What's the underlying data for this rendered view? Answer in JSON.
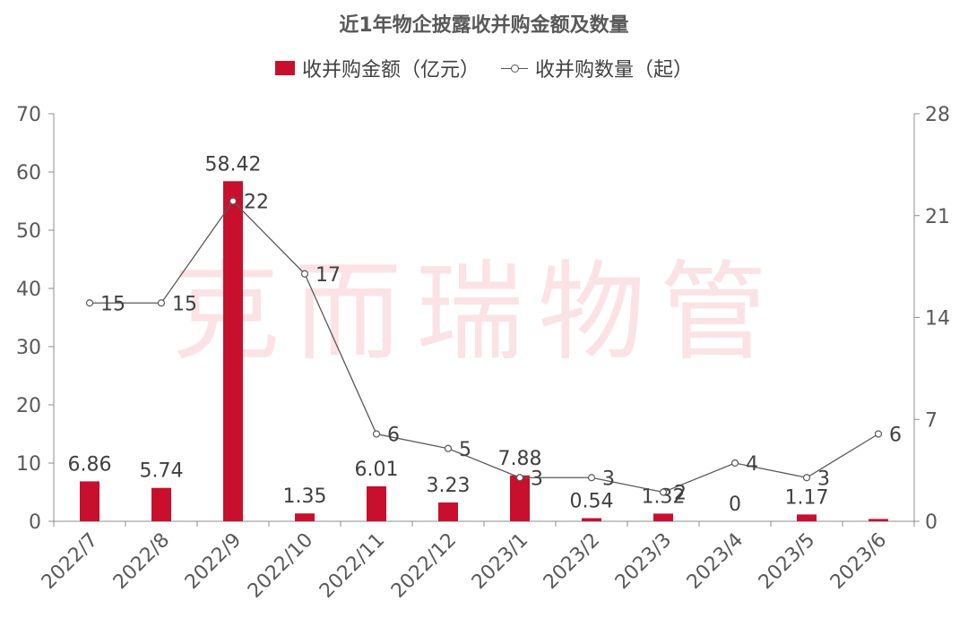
{
  "chart_data": {
    "title": "近1年物企披露收并购金额及数量",
    "type": "bar+line",
    "categories": [
      "2022/7",
      "2022/8",
      "2022/9",
      "2022/10",
      "2022/11",
      "2022/12",
      "2023/1",
      "2023/2",
      "2023/3",
      "2023/4",
      "2023/5",
      "2023/6"
    ],
    "series": [
      {
        "name": "收并购金额（亿元）",
        "type": "bar",
        "axis": "left",
        "color": "#c8102e",
        "values": [
          6.86,
          5.74,
          58.42,
          1.35,
          6.01,
          3.23,
          7.88,
          0.54,
          1.32,
          0,
          1.17,
          0.4
        ],
        "labels": [
          "6.86",
          "5.74",
          "58.42",
          "1.35",
          "6.01",
          "3.23",
          "7.88",
          "0.54",
          "1.32",
          "0",
          "1.17",
          ""
        ]
      },
      {
        "name": "收并购数量（起）",
        "type": "line",
        "axis": "right",
        "color": "#595959",
        "values": [
          15,
          15,
          22,
          17,
          6,
          5,
          3,
          3,
          2,
          4,
          3,
          6
        ],
        "labels": [
          "15",
          "15",
          "22",
          "17",
          "6",
          "5",
          "3",
          "3",
          "2",
          "4",
          "3",
          "6"
        ]
      }
    ],
    "y_left": {
      "min": 0,
      "max": 70,
      "ticks": [
        "0",
        "10",
        "20",
        "30",
        "40",
        "50",
        "60",
        "70"
      ]
    },
    "y_right": {
      "min": 0,
      "max": 28,
      "ticks": [
        "0",
        "7",
        "14",
        "21",
        "28"
      ]
    },
    "legend_position": "top-center",
    "grid": false,
    "watermark": "克而瑞物管"
  }
}
